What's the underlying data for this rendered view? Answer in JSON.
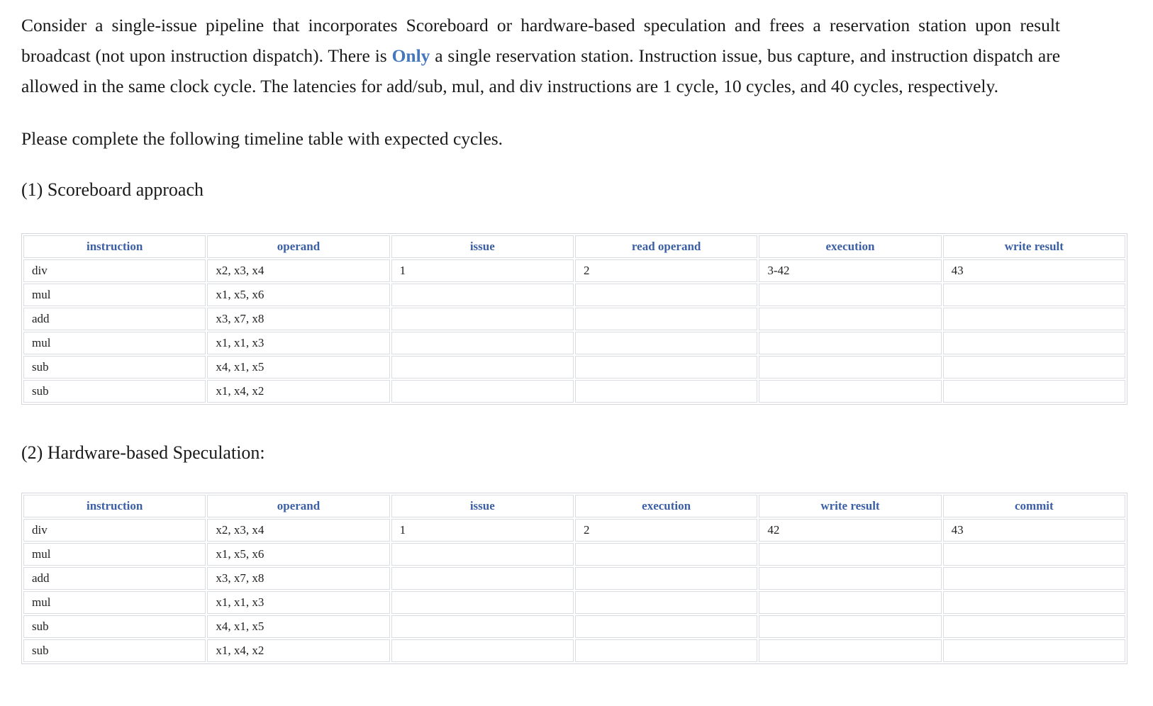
{
  "colors": {
    "highlight_blue": "#4577bd",
    "table_header_blue": "#3a5fa5",
    "table_border": "#dadde2",
    "body_text": "#1a1a1a"
  },
  "page": {
    "intro_before": "Consider a single-issue pipeline that incorporates Scoreboard or hardware-based speculation and frees a reservation station upon result broadcast (not upon instruction dispatch). There is ",
    "intro_highlight": "Only",
    "intro_after": " a single reservation station. Instruction issue, bus capture, and instruction dispatch are allowed in the same clock cycle. The latencies for add/sub, mul, and div instructions are 1 cycle, 10 cycles, and 40 cycles, respectively.",
    "prompt": "Please complete the following timeline table with expected cycles."
  },
  "sections": [
    {
      "heading": "(1) Scoreboard approach",
      "table": {
        "headers": [
          "instruction",
          "operand",
          "issue",
          "read operand",
          "execution",
          "write result"
        ],
        "rows": [
          [
            "div",
            "x2, x3, x4",
            "1",
            "2",
            "3-42",
            "43"
          ],
          [
            "mul",
            "x1, x5, x6",
            "",
            "",
            "",
            ""
          ],
          [
            "add",
            "x3, x7, x8",
            "",
            "",
            "",
            ""
          ],
          [
            "mul",
            "x1, x1, x3",
            "",
            "",
            "",
            ""
          ],
          [
            "sub",
            "x4, x1, x5",
            "",
            "",
            "",
            ""
          ],
          [
            "sub",
            "x1, x4, x2",
            "",
            "",
            "",
            ""
          ]
        ]
      }
    },
    {
      "heading": "(2) Hardware-based Speculation:",
      "table": {
        "headers": [
          "instruction",
          "operand",
          "issue",
          "execution",
          "write result",
          "commit"
        ],
        "rows": [
          [
            "div",
            "x2, x3, x4",
            "1",
            "2",
            "42",
            "43"
          ],
          [
            "mul",
            "x1, x5, x6",
            "",
            "",
            "",
            ""
          ],
          [
            "add",
            "x3, x7, x8",
            "",
            "",
            "",
            ""
          ],
          [
            "mul",
            "x1, x1, x3",
            "",
            "",
            "",
            ""
          ],
          [
            "sub",
            "x4, x1, x5",
            "",
            "",
            "",
            ""
          ],
          [
            "sub",
            "x1, x4, x2",
            "",
            "",
            "",
            ""
          ]
        ]
      }
    }
  ]
}
